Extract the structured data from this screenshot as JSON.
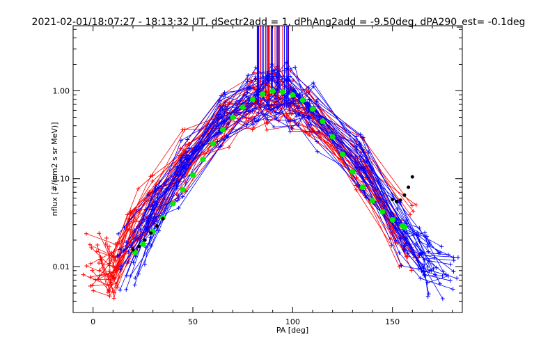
{
  "chart_data": {
    "type": "scatter",
    "title": "2021-02-01/18:07:27 - 18:13:32 UT, dSectr2add = 1, dPhAng2add = -9.50deg, dPA290_est=  -0.1deg",
    "xlabel": "PA [deg]",
    "ylabel": "nflux [#/(cm2 s sr MeV)]",
    "xlim": [
      -10,
      185
    ],
    "ylim": [
      0.003,
      5.5
    ],
    "yscale": "log",
    "x_ticks": [
      0,
      50,
      100,
      150
    ],
    "y_ticks": [
      0.01,
      0.1,
      1.0
    ],
    "x_tick_labels": [
      "0",
      "50",
      "100",
      "150"
    ],
    "y_tick_labels": [
      "0.01",
      "0.10",
      "1.00"
    ],
    "colors": {
      "series_a": "#ff0000",
      "series_b": "#0000ff",
      "fit": "#00ee00",
      "model": "#000000",
      "axes": "#000000"
    },
    "series": [
      {
        "name": "red pitch-angle traces",
        "color": "#ff0000",
        "note": "many crossing traces, cusp near PA 90",
        "x": [
          3,
          10,
          20,
          30,
          45,
          65,
          80,
          90,
          100,
          110,
          135,
          155
        ],
        "values": [
          0.012,
          0.009,
          0.03,
          0.055,
          0.16,
          0.45,
          0.75,
          0.95,
          0.75,
          0.5,
          0.13,
          0.02
        ]
      },
      {
        "name": "blue pitch-angle traces",
        "color": "#0000ff",
        "note": "many crossing traces, cusp near PA 90",
        "x": [
          20,
          30,
          45,
          65,
          80,
          90,
          100,
          110,
          135,
          155,
          165,
          175
        ],
        "values": [
          0.012,
          0.04,
          0.14,
          0.5,
          0.8,
          0.95,
          0.8,
          0.55,
          0.14,
          0.025,
          0.012,
          0.008
        ]
      },
      {
        "name": "green fit",
        "color": "#00ee00",
        "x": [
          21,
          25,
          30,
          35,
          40,
          45,
          50,
          55,
          60,
          65,
          70,
          75,
          80,
          85,
          90,
          95,
          100,
          105,
          110,
          115,
          120,
          125,
          130,
          135,
          140,
          145,
          150,
          155,
          156
        ],
        "values": [
          0.0145,
          0.018,
          0.025,
          0.036,
          0.052,
          0.075,
          0.11,
          0.165,
          0.25,
          0.36,
          0.5,
          0.65,
          0.8,
          0.92,
          0.99,
          0.97,
          0.9,
          0.78,
          0.62,
          0.45,
          0.3,
          0.19,
          0.12,
          0.08,
          0.056,
          0.042,
          0.034,
          0.029,
          0.028
        ]
      },
      {
        "name": "black model",
        "color": "#000000",
        "x": [
          20,
          23,
          26,
          29,
          32,
          35,
          150,
          152,
          154,
          156,
          158,
          160
        ],
        "values": [
          0.0155,
          0.017,
          0.02,
          0.024,
          0.029,
          0.035,
          0.058,
          0.055,
          0.057,
          0.065,
          0.08,
          0.105
        ]
      }
    ]
  }
}
